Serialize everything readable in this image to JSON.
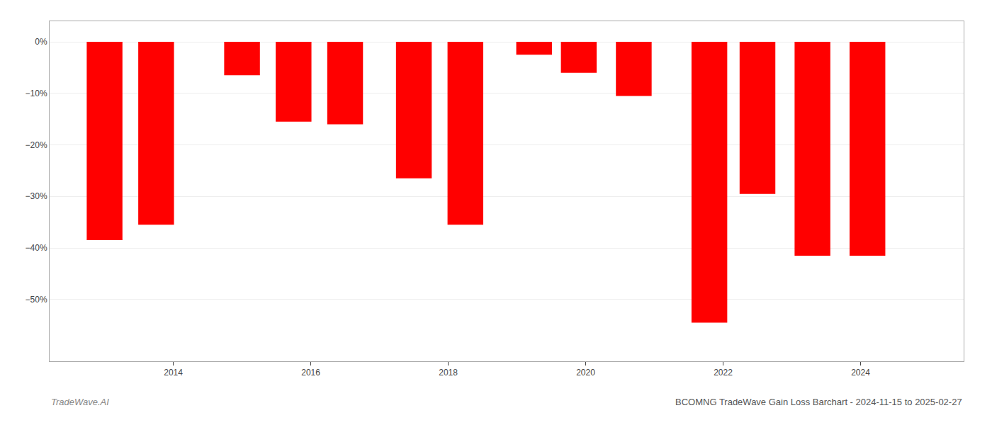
{
  "chart_data": {
    "type": "bar",
    "x": [
      2013,
      2013.75,
      2015,
      2015.75,
      2016.5,
      2017.5,
      2018.25,
      2019.25,
      2019.9,
      2020.7,
      2021.8,
      2022.5,
      2023.3,
      2024.1
    ],
    "values": [
      -0.385,
      -0.355,
      -0.065,
      -0.155,
      -0.16,
      -0.265,
      -0.355,
      -0.025,
      -0.06,
      -0.105,
      -0.545,
      -0.295,
      -0.415,
      -0.415
    ],
    "color": "#ff0000",
    "xlim": [
      2012.2,
      2025.5
    ],
    "xticks": [
      2014,
      2016,
      2018,
      2020,
      2022,
      2024
    ],
    "ylim": [
      -0.62,
      0.04
    ],
    "yticks": [
      {
        "value": 0.0,
        "label": "0%"
      },
      {
        "value": -0.1,
        "label": "−10%"
      },
      {
        "value": -0.2,
        "label": "−20%"
      },
      {
        "value": -0.3,
        "label": "−30%"
      },
      {
        "value": -0.4,
        "label": "−40%"
      },
      {
        "value": -0.5,
        "label": "−50%"
      }
    ],
    "grid": true,
    "annotations": [
      "TradeWave.AI",
      "BCOMNG TradeWave Gain Loss Barchart - 2024-11-15 to 2025-02-27"
    ]
  }
}
